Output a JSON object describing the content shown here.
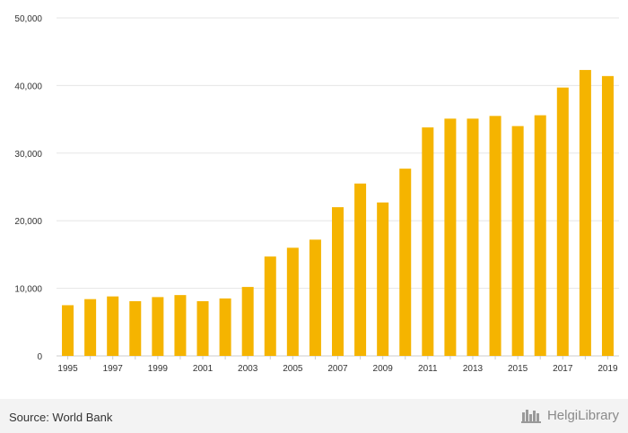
{
  "chart_data": {
    "type": "bar",
    "categories": [
      "1995",
      "1996",
      "1997",
      "1998",
      "1999",
      "2000",
      "2001",
      "2002",
      "2003",
      "2004",
      "2005",
      "2006",
      "2007",
      "2008",
      "2009",
      "2010",
      "2011",
      "2012",
      "2013",
      "2014",
      "2015",
      "2016",
      "2017",
      "2018",
      "2019"
    ],
    "x_tick_labels": [
      "1995",
      "1997",
      "1999",
      "2001",
      "2003",
      "2005",
      "2007",
      "2009",
      "2011",
      "2013",
      "2015",
      "2017",
      "2019"
    ],
    "values": [
      7500,
      8400,
      8800,
      8100,
      8700,
      9000,
      8100,
      8500,
      10200,
      14700,
      16000,
      17200,
      22000,
      25500,
      22700,
      27700,
      33800,
      35100,
      35100,
      35500,
      34000,
      35600,
      39700,
      42300,
      41400
    ],
    "y_ticks": [
      0,
      10000,
      20000,
      30000,
      40000,
      50000
    ],
    "y_tick_labels": [
      "0",
      "10,000",
      "20,000",
      "30,000",
      "40,000",
      "50,000"
    ],
    "ylim": [
      0,
      50000
    ],
    "bar_color": "#f5b400",
    "grid": true
  },
  "footer": {
    "source": "Source: World Bank",
    "brand": "HelgiLibrary",
    "brand_color": "#8a8a8a"
  }
}
